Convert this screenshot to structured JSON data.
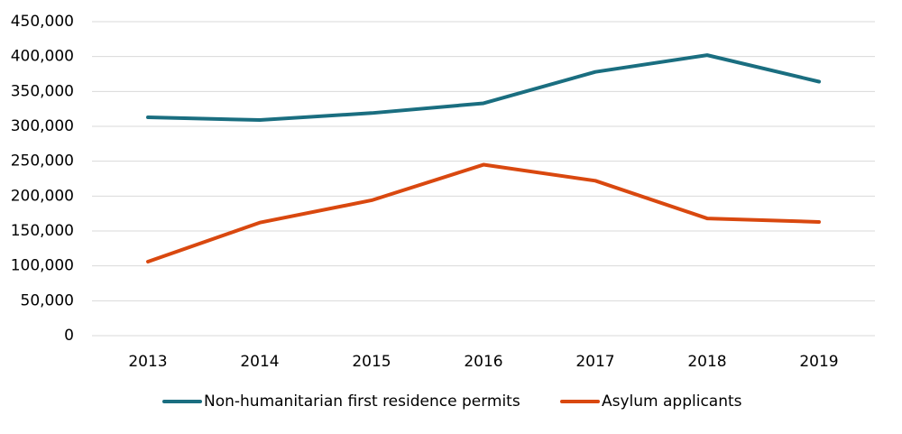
{
  "chart_data": {
    "type": "line",
    "title": "",
    "xlabel": "",
    "ylabel": "",
    "ylim": [
      0,
      450000
    ],
    "ytick_step": 50000,
    "yticks": [
      "0",
      "50,000",
      "100,000",
      "150,000",
      "200,000",
      "250,000",
      "300,000",
      "350,000",
      "400,000",
      "450,000"
    ],
    "categories": [
      "2013",
      "2014",
      "2015",
      "2016",
      "2017",
      "2018",
      "2019"
    ],
    "grid": true,
    "legend_position": "bottom",
    "series": [
      {
        "name": "Non-humanitarian first residence permits",
        "color": "#1a6e80",
        "values": [
          313000,
          309000,
          319000,
          333000,
          378000,
          402000,
          364000
        ]
      },
      {
        "name": "Asylum applicants",
        "color": "#d9480f",
        "values": [
          106000,
          162000,
          194000,
          245000,
          222000,
          168000,
          163000
        ]
      }
    ]
  }
}
